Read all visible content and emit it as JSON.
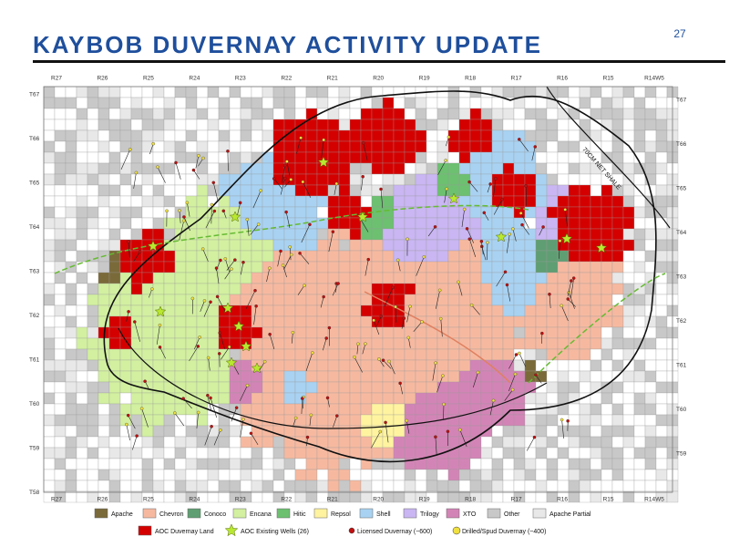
{
  "header": {
    "title": "KAYBOB DUVERNAY ACTIVITY UPDATE",
    "page_number": "27"
  },
  "map": {
    "ranges_top": [
      "R27",
      "R26",
      "R25",
      "R24",
      "R23",
      "R22",
      "R21",
      "R20",
      "R19",
      "R18",
      "R17",
      "R16",
      "R15",
      "R14W5"
    ],
    "ranges_bottom": [
      "R27",
      "R26",
      "R25",
      "R24",
      "R23",
      "R22",
      "R21",
      "R20",
      "R19",
      "R18",
      "R17",
      "R16",
      "R15",
      "R14W5"
    ],
    "townships_left": [
      "T67",
      "T66",
      "T65",
      "T64",
      "T63",
      "T62",
      "T61",
      "T60",
      "T59",
      "T58"
    ],
    "townships_right": [
      "T67",
      "T66",
      "T65",
      "T64",
      "T63",
      "T62",
      "T61",
      "T60",
      "T59"
    ],
    "annotation": "70CM NET SHALE"
  },
  "legend": {
    "operators": [
      {
        "label": "Apache",
        "color": "#7a6a3a"
      },
      {
        "label": "Chevron",
        "color": "#f6b9a0"
      },
      {
        "label": "Conoco",
        "color": "#5f9e72"
      },
      {
        "label": "Encana",
        "color": "#d2f0a0"
      },
      {
        "label": "Hitic",
        "color": "#6cc070"
      },
      {
        "label": "Repsol",
        "color": "#fff3a0"
      },
      {
        "label": "Shell",
        "color": "#a9d2f2"
      },
      {
        "label": "Trilogy",
        "color": "#c9b6f2"
      },
      {
        "label": "XTO",
        "color": "#d384b6"
      },
      {
        "label": "Other",
        "color": "#c8c8c8"
      },
      {
        "label": "Apache Partial",
        "color": "#e8e8e8"
      }
    ],
    "symbols": [
      {
        "label": "AOC Duvernay Land",
        "color": "#d40000"
      },
      {
        "label": "AOC Existing Wells (26)",
        "color": "#b8e830"
      },
      {
        "label": "Licensed Duvernay (~600)",
        "color": "#c01010"
      },
      {
        "label": "Drilled/Spud Duvernay (~400)",
        "color": "#f0e040"
      }
    ]
  }
}
